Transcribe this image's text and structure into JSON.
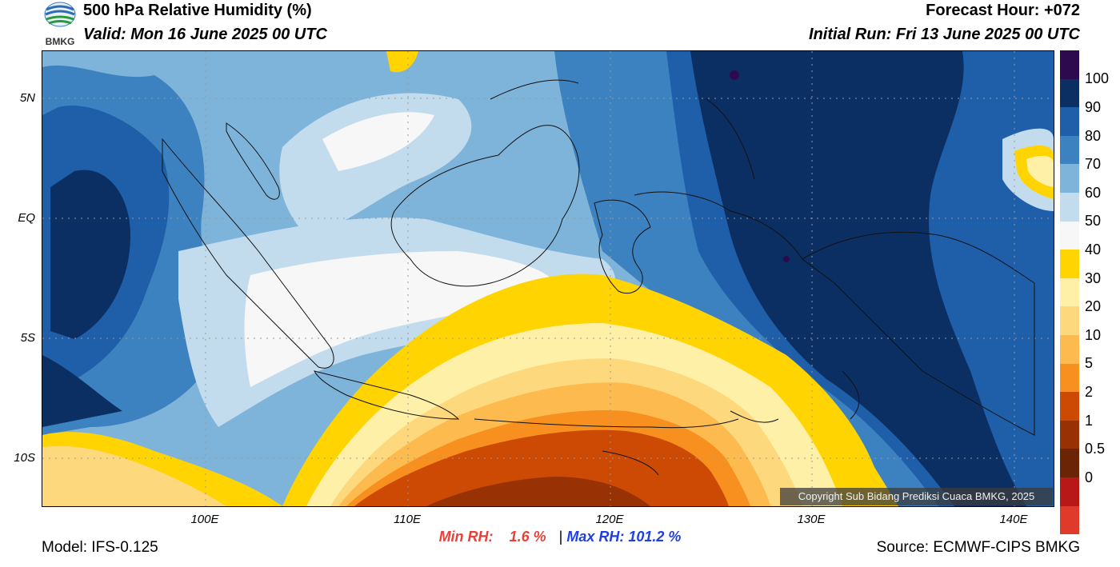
{
  "header": {
    "title": "500 hPa Relative Humidity (%)",
    "valid": "Valid: Mon 16 June 2025 00 UTC",
    "forecast_hour": "Forecast Hour: +072",
    "initial_run": "Initial Run: Fri 13 June 2025 00 UTC",
    "logo_text": "BMKG"
  },
  "axes": {
    "lat_labels": [
      "5N",
      "EQ",
      "5S",
      "10S"
    ],
    "lon_labels": [
      "100E",
      "110E",
      "120E",
      "130E",
      "140E"
    ]
  },
  "colorbar": {
    "labels": [
      "100",
      "90",
      "80",
      "70",
      "60",
      "50",
      "40",
      "30",
      "20",
      "10",
      "5",
      "2",
      "1",
      "0.5",
      "0"
    ],
    "colors": [
      "#2d0a4e",
      "#0c2f63",
      "#1f5ea8",
      "#3d82c0",
      "#7fb4da",
      "#c2dcee",
      "#f7f7f7",
      "#ffd400",
      "#fff0a8",
      "#fed87c",
      "#fdbb4f",
      "#f7901e",
      "#cc4a04",
      "#983205",
      "#6b2506",
      "#b81818",
      "#e03a2a"
    ]
  },
  "stats": {
    "min_label": "Min RH:",
    "min_value": "1.6 %",
    "separator": "|",
    "max_label": "Max RH:",
    "max_value": "101.2 %"
  },
  "footer": {
    "model": "Model: IFS-0.125",
    "source": "Source: ECMWF-CIPS BMKG",
    "copyright": "Copyright Sub Bidang Prediksi Cuaca BMKG, 2025"
  },
  "colors": {
    "min_rh": "#e8403a",
    "max_rh": "#1f3fe0"
  }
}
